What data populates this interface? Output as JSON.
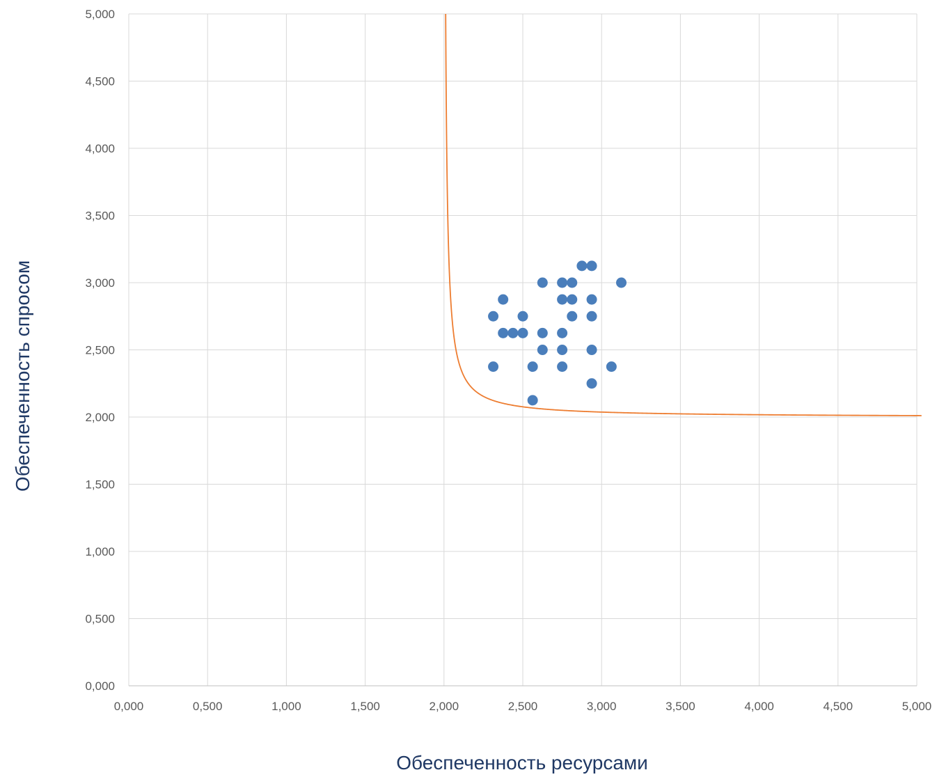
{
  "chart_data": {
    "type": "scatter",
    "xlabel": "Обеспеченность ресурсами",
    "ylabel": "Обеспеченность спросом",
    "xlim": [
      0,
      5
    ],
    "ylim": [
      0,
      5
    ],
    "grid": true,
    "x_ticks": [
      "0,000",
      "0,500",
      "1,000",
      "1,500",
      "2,000",
      "2,500",
      "3,000",
      "3,500",
      "4,000",
      "4,500",
      "5,000"
    ],
    "y_ticks": [
      "0,000",
      "0,500",
      "1,000",
      "1,500",
      "2,000",
      "2,500",
      "3,000",
      "3,500",
      "4,000",
      "4,500",
      "5,000"
    ],
    "colors": {
      "points": "#4a7ebb",
      "curve": "#ed7d31",
      "grid": "#d9d9d9",
      "axis_title": "#1f3864",
      "tick": "#595959"
    },
    "points": [
      [
        2.3125,
        2.75
      ],
      [
        2.3125,
        2.375
      ],
      [
        2.375,
        2.875
      ],
      [
        2.375,
        2.625
      ],
      [
        2.4375,
        2.625
      ],
      [
        2.5,
        2.75
      ],
      [
        2.5,
        2.625
      ],
      [
        2.5625,
        2.375
      ],
      [
        2.5625,
        2.125
      ],
      [
        2.625,
        3.0
      ],
      [
        2.625,
        2.625
      ],
      [
        2.625,
        2.5
      ],
      [
        2.75,
        3.0
      ],
      [
        2.75,
        2.875
      ],
      [
        2.75,
        2.625
      ],
      [
        2.75,
        2.5
      ],
      [
        2.75,
        2.375
      ],
      [
        2.8125,
        3.0
      ],
      [
        2.8125,
        2.875
      ],
      [
        2.8125,
        2.75
      ],
      [
        2.875,
        3.125
      ],
      [
        2.9375,
        3.125
      ],
      [
        2.9375,
        2.875
      ],
      [
        2.9375,
        2.75
      ],
      [
        2.9375,
        2.5
      ],
      [
        2.9375,
        2.25
      ],
      [
        3.0625,
        2.375
      ],
      [
        3.125,
        3.0
      ]
    ],
    "curve": {
      "type": "hyperbola",
      "equation": "(x-1.9975)*(y-1.9975)=0.0395",
      "x_start": 1.99,
      "x_end": 5.03
    }
  }
}
